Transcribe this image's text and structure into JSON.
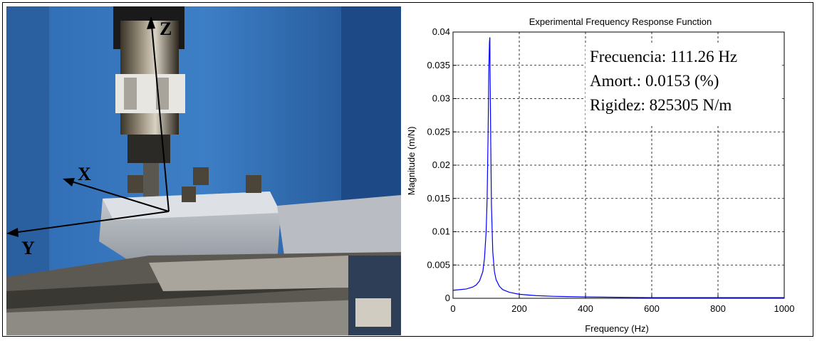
{
  "photo": {
    "axis_labels": {
      "z": "Z",
      "x": "X",
      "y": "Y"
    }
  },
  "chart_data": {
    "type": "line",
    "title": "Experimental Frequency Response Function",
    "xlabel": "Frequency (Hz)",
    "ylabel": "Magnitude (m/N)",
    "xlim": [
      0,
      1000
    ],
    "ylim": [
      0,
      0.04
    ],
    "xticks": [
      0,
      200,
      400,
      600,
      800,
      1000
    ],
    "yticks": [
      0,
      0.005,
      0.01,
      0.015,
      0.02,
      0.025,
      0.03,
      0.035,
      0.04
    ],
    "ytick_labels": [
      "0",
      "0.005",
      "0.01",
      "0.015",
      "0.02",
      "0.025",
      "0.03",
      "0.035",
      "0.04"
    ],
    "grid": true,
    "line_color": "#0000ff",
    "series": [
      {
        "x": [
          0,
          20,
          40,
          60,
          70,
          80,
          90,
          95,
          100,
          103,
          106,
          108,
          110,
          111.26,
          112,
          114,
          116,
          120,
          125,
          130,
          140,
          150,
          170,
          200,
          250,
          300,
          400,
          500,
          600,
          700,
          800,
          900,
          1000
        ],
        "values": [
          0.0012,
          0.0013,
          0.0014,
          0.0017,
          0.002,
          0.0026,
          0.004,
          0.006,
          0.01,
          0.015,
          0.025,
          0.034,
          0.0385,
          0.0392,
          0.0336,
          0.023,
          0.014,
          0.007,
          0.004,
          0.0028,
          0.0018,
          0.0013,
          0.0009,
          0.0006,
          0.0004,
          0.0003,
          0.0002,
          0.00015,
          0.0001,
          0.0001,
          0.0001,
          0.0001,
          0.0001
        ]
      }
    ],
    "annotations": [
      "Frecuencia: 111.26 Hz",
      "Amort.: 0.0153 (%)",
      "Rigidez: 825305 N/m"
    ]
  }
}
